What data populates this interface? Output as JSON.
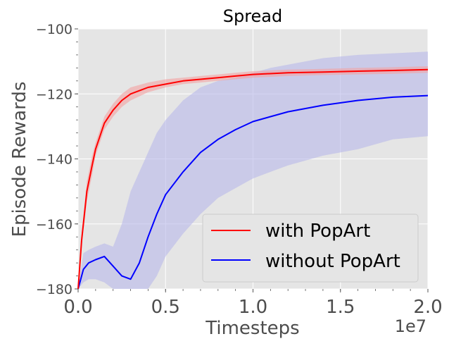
{
  "chart_data": {
    "type": "line",
    "title": "Spread",
    "xlabel": "Timesteps",
    "ylabel": "Episode Rewards",
    "x_offset_label": "1e7",
    "xlim": [
      0,
      2.0
    ],
    "ylim": [
      -180,
      -100
    ],
    "xticks": [
      0.0,
      0.5,
      1.0,
      1.5,
      2.0
    ],
    "xtick_labels": [
      "0.0",
      "0.5",
      "1.0",
      "1.5",
      "2.0"
    ],
    "yticks": [
      -180,
      -160,
      -140,
      -120,
      -100
    ],
    "ytick_labels": [
      "−180",
      "−160",
      "−140",
      "−120",
      "−100"
    ],
    "grid": true,
    "legend_position": "lower-right",
    "background_color": "#e5e5e5",
    "series": [
      {
        "name": "with PopArt",
        "color": "#ff0000",
        "band_color": "#f4a0a0",
        "x": [
          0.0,
          0.02,
          0.05,
          0.08,
          0.1,
          0.15,
          0.2,
          0.25,
          0.3,
          0.4,
          0.5,
          0.6,
          0.7,
          0.8,
          0.9,
          1.0,
          1.2,
          1.4,
          1.6,
          1.8,
          2.0
        ],
        "y": [
          -180,
          -165,
          -150,
          -142,
          -137,
          -129,
          -125,
          -122,
          -120,
          -118,
          -117,
          -116,
          -115.5,
          -115,
          -114.5,
          -114,
          -113.5,
          -113.3,
          -113,
          -112.8,
          -112.5
        ],
        "lower": [
          -180,
          -167,
          -153,
          -145,
          -139,
          -131,
          -127,
          -124,
          -122,
          -119.5,
          -118,
          -117,
          -116.5,
          -116,
          -115.5,
          -115,
          -114.5,
          -114.2,
          -114,
          -113.8,
          -113.5
        ],
        "upper": [
          -180,
          -163,
          -147,
          -139,
          -135,
          -127,
          -123,
          -120,
          -118,
          -116.5,
          -115.5,
          -115,
          -114.5,
          -114,
          -113.5,
          -113,
          -112.5,
          -112.3,
          -112,
          -111.8,
          -111.5
        ]
      },
      {
        "name": "without PopArt",
        "color": "#0000ff",
        "band_color": "#b8b8ea",
        "x": [
          0.0,
          0.03,
          0.06,
          0.1,
          0.15,
          0.2,
          0.25,
          0.3,
          0.35,
          0.4,
          0.45,
          0.5,
          0.6,
          0.7,
          0.8,
          0.9,
          1.0,
          1.1,
          1.2,
          1.4,
          1.6,
          1.8,
          2.0
        ],
        "y": [
          -180,
          -174,
          -172,
          -171,
          -170,
          -173,
          -176,
          -177,
          -172,
          -164,
          -157,
          -151,
          -144,
          -138,
          -134,
          -131,
          -128.5,
          -127,
          -125.5,
          -123.5,
          -122,
          -121,
          -120.5
        ],
        "lower": [
          -180,
          -178,
          -177,
          -177,
          -178,
          -180,
          -180,
          -180,
          -180,
          -180,
          -176,
          -170,
          -163,
          -157,
          -152,
          -149,
          -146,
          -144,
          -142,
          -139,
          -137,
          -134,
          -133
        ],
        "upper": [
          -180,
          -169,
          -168,
          -167,
          -166,
          -167,
          -160,
          -150,
          -144,
          -138,
          -132,
          -128,
          -122,
          -118,
          -116,
          -115,
          -113.5,
          -112,
          -111,
          -109,
          -108,
          -107.5,
          -107
        ]
      }
    ]
  }
}
